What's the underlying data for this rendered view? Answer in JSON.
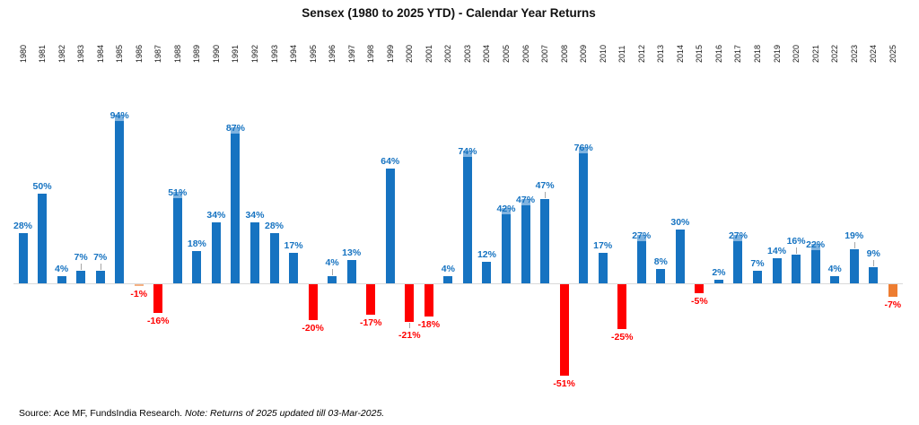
{
  "chart_data": {
    "type": "bar",
    "title": "Sensex (1980 to 2025 YTD) - Calendar Year Returns",
    "categories": [
      "1980",
      "1981",
      "1982",
      "1983",
      "1984",
      "1985",
      "1986",
      "1987",
      "1988",
      "1989",
      "1990",
      "1991",
      "1992",
      "1993",
      "1994",
      "1995",
      "1996",
      "1997",
      "1998",
      "1999",
      "2000",
      "2001",
      "2002",
      "2003",
      "2004",
      "2005",
      "2006",
      "2007",
      "2008",
      "2009",
      "2010",
      "2011",
      "2012",
      "2013",
      "2014",
      "2015",
      "2016",
      "2017",
      "2018",
      "2019",
      "2020",
      "2021",
      "2022",
      "2023",
      "2024",
      "2025"
    ],
    "values": [
      28,
      50,
      4,
      7,
      7,
      94,
      -1,
      -16,
      51,
      18,
      34,
      87,
      34,
      28,
      17,
      -20,
      4,
      13,
      -17,
      64,
      -21,
      -18,
      4,
      74,
      12,
      42,
      47,
      47,
      -51,
      76,
      17,
      -25,
      27,
      8,
      30,
      -5,
      2,
      27,
      7,
      14,
      16,
      22,
      4,
      19,
      9,
      -7
    ],
    "label_suffix": "%",
    "ylim": [
      -60,
      100
    ],
    "grid": false,
    "legend": "none",
    "colors": {
      "positive_bar": "#1673C1",
      "negative_bar": "#FF0000",
      "positive_label": "#1673C1",
      "negative_label": "#FF0000",
      "cap_highlight": "#7FB3E0",
      "leader_line": "#A6A6A6",
      "zero_line": "#D9D9D9"
    },
    "special_bar_colors": {
      "1986": "#F5B183",
      "2025": "#ED7D31"
    },
    "cap_years": [
      "1985",
      "1988",
      "1991",
      "2003",
      "2005",
      "2006",
      "2009",
      "2012",
      "2017",
      "2021"
    ],
    "leader_years": [
      "1983",
      "1984",
      "1996",
      "2000",
      "2007",
      "2020",
      "2023",
      "2024"
    ]
  },
  "footer": {
    "source_text": "Source: Ace MF, FundsIndia Research. ",
    "note_text": "Note: Returns of 2025 updated till 03-Mar-2025."
  }
}
